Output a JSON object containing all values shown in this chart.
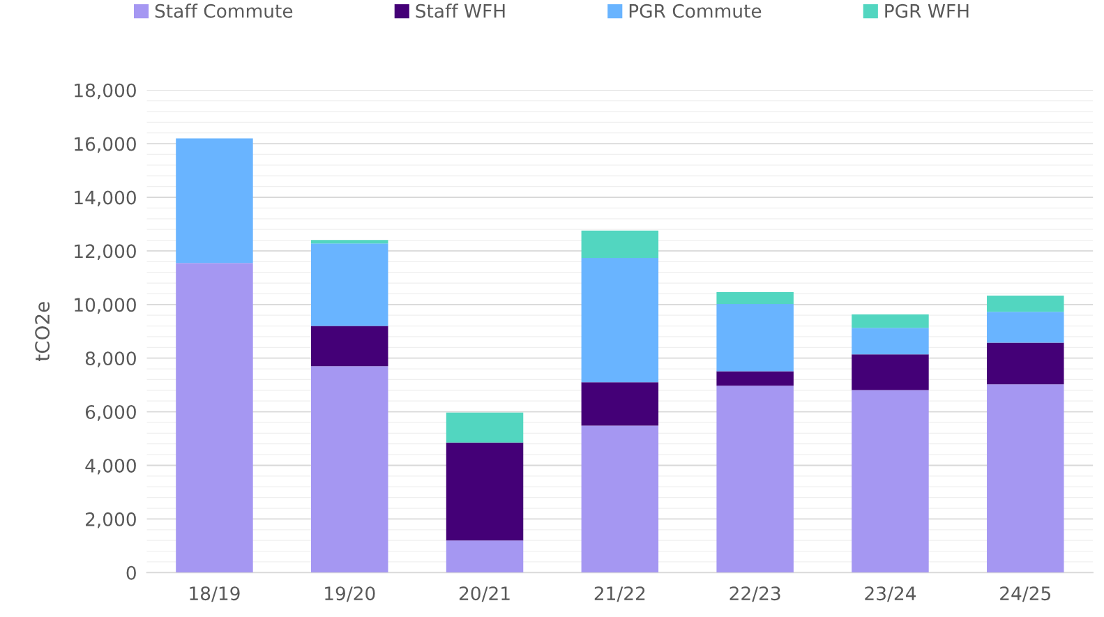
{
  "chart_data": {
    "type": "bar",
    "stacked": true,
    "ylabel": "tCO2e",
    "categories": [
      "18/19",
      "19/20",
      "20/21",
      "21/22",
      "22/23",
      "23/24",
      "24/25"
    ],
    "series": [
      {
        "name": "Staff Commute",
        "color": "#a597f2",
        "values": [
          11550,
          7700,
          1200,
          5480,
          6970,
          6810,
          7020
        ]
      },
      {
        "name": "Staff WFH",
        "color": "#440077",
        "values": [
          0,
          1500,
          3650,
          1620,
          540,
          1330,
          1560
        ]
      },
      {
        "name": "PGR Commute",
        "color": "#69b4ff",
        "values": [
          4650,
          3080,
          0,
          4640,
          2510,
          990,
          1150
        ]
      },
      {
        "name": "PGR WFH",
        "color": "#52d6c0",
        "values": [
          0,
          130,
          1120,
          1020,
          440,
          500,
          600
        ]
      }
    ],
    "ylim": [
      0,
      18000
    ],
    "yticks": [
      {
        "value": 0,
        "label": "0"
      },
      {
        "value": 400,
        "label": null
      },
      {
        "value": 800,
        "label": null
      },
      {
        "value": 1200,
        "label": null
      },
      {
        "value": 1600,
        "label": null
      },
      {
        "value": 2000,
        "label": "2,000"
      },
      {
        "value": 2400,
        "label": null
      },
      {
        "value": 2800,
        "label": null
      },
      {
        "value": 3200,
        "label": null
      },
      {
        "value": 3600,
        "label": null
      },
      {
        "value": 4000,
        "label": "4,000"
      },
      {
        "value": 4400,
        "label": null
      },
      {
        "value": 4800,
        "label": null
      },
      {
        "value": 5200,
        "label": null
      },
      {
        "value": 5600,
        "label": null
      },
      {
        "value": 6000,
        "label": "6,000"
      },
      {
        "value": 6400,
        "label": null
      },
      {
        "value": 6800,
        "label": null
      },
      {
        "value": 7200,
        "label": null
      },
      {
        "value": 7600,
        "label": null
      },
      {
        "value": 8000,
        "label": "8,000"
      },
      {
        "value": 8400,
        "label": null
      },
      {
        "value": 8800,
        "label": null
      },
      {
        "value": 9200,
        "label": null
      },
      {
        "value": 9600,
        "label": null
      },
      {
        "value": 10000,
        "label": "10,000"
      },
      {
        "value": 10400,
        "label": null
      },
      {
        "value": 10800,
        "label": null
      },
      {
        "value": 11200,
        "label": null
      },
      {
        "value": 11600,
        "label": null
      },
      {
        "value": 12000,
        "label": "12,000"
      },
      {
        "value": 12400,
        "label": null
      },
      {
        "value": 12800,
        "label": null
      },
      {
        "value": 13200,
        "label": null
      },
      {
        "value": 13600,
        "label": null
      },
      {
        "value": 14000,
        "label": "14,000"
      },
      {
        "value": 14400,
        "label": null
      },
      {
        "value": 14800,
        "label": null
      },
      {
        "value": 15200,
        "label": null
      },
      {
        "value": 15600,
        "label": null
      },
      {
        "value": 16000,
        "label": "16,000"
      },
      {
        "value": 16400,
        "label": null
      },
      {
        "value": 16800,
        "label": null
      },
      {
        "value": 17200,
        "label": null
      },
      {
        "value": 17600,
        "label": null
      },
      {
        "value": 18000,
        "label": "18,000"
      }
    ],
    "grid": "y",
    "legend": "top"
  }
}
